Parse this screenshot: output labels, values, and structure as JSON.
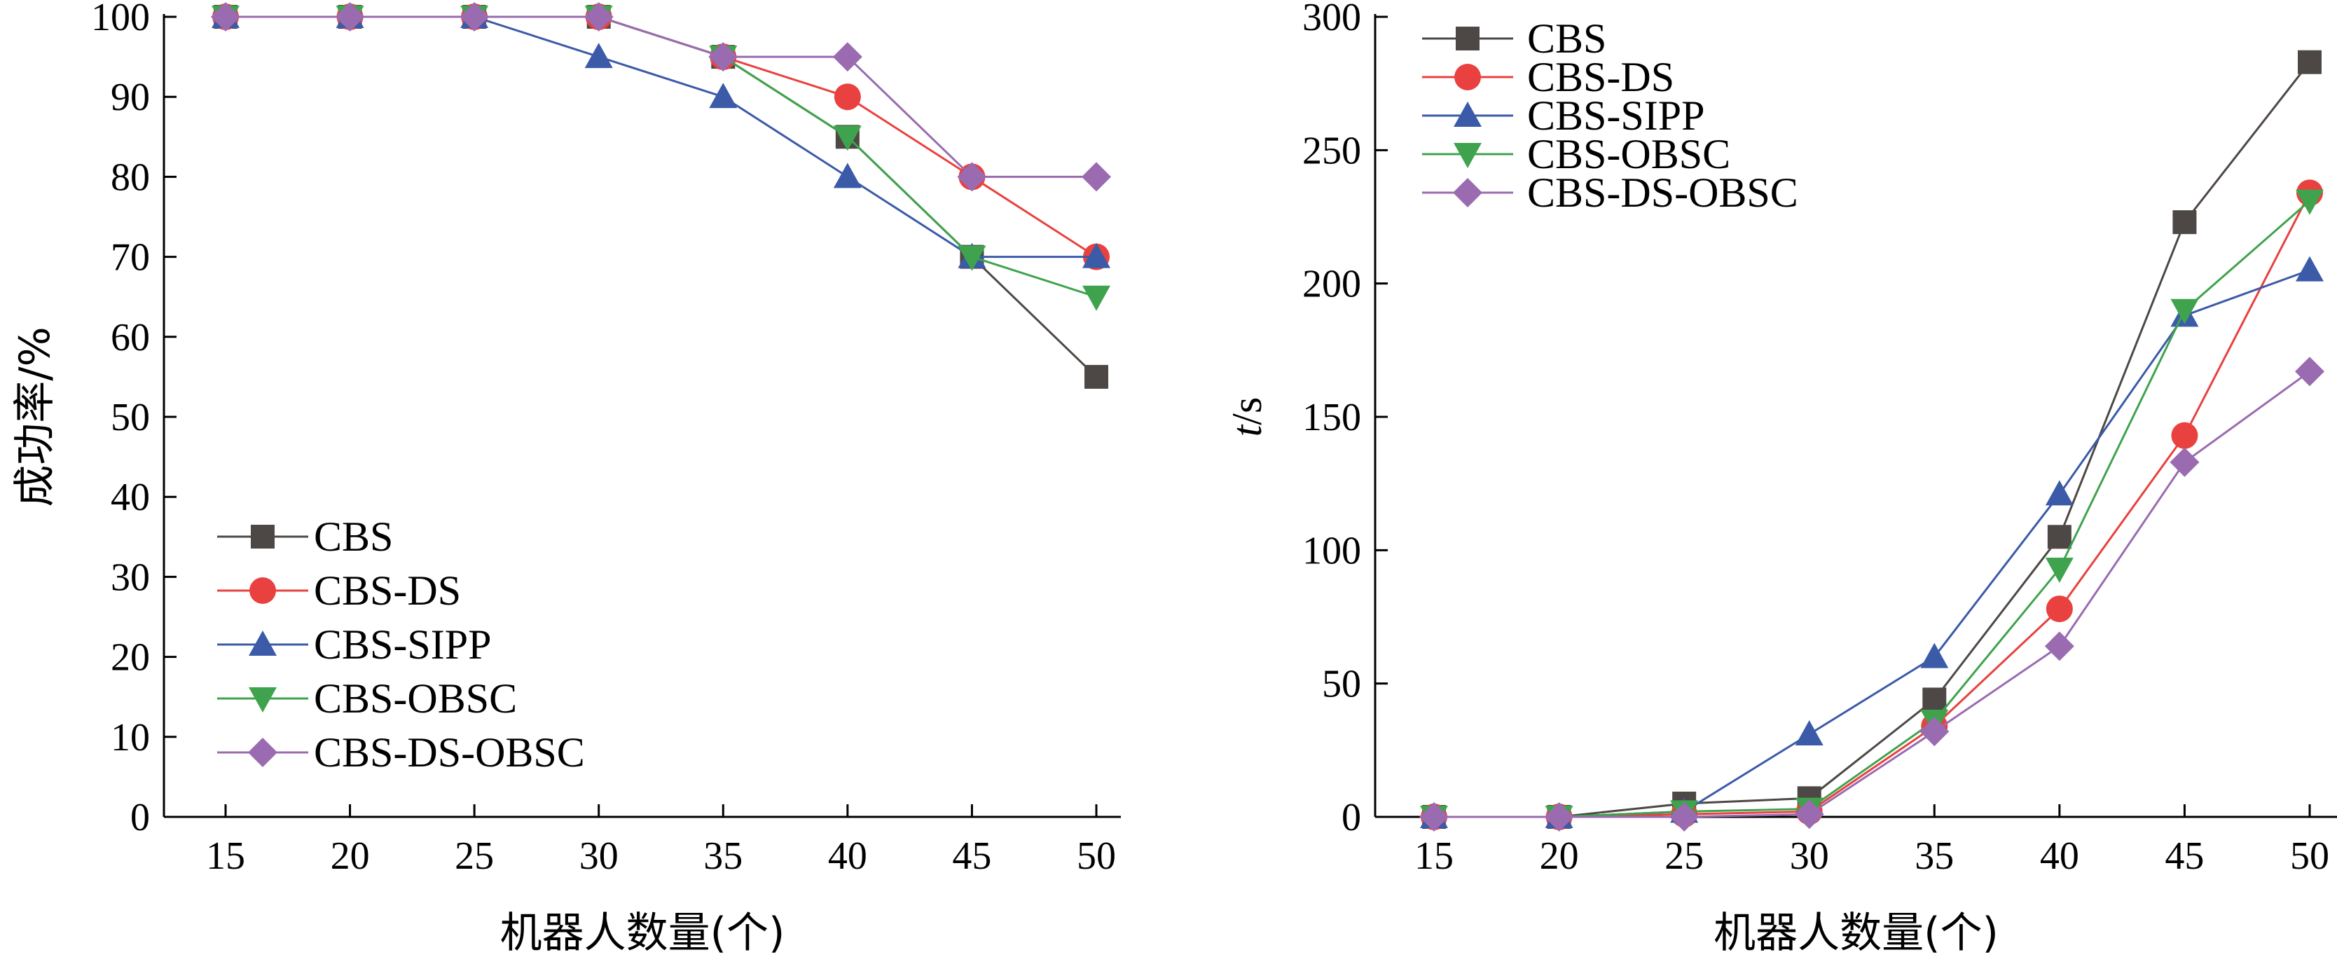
{
  "chart_data": [
    {
      "type": "line",
      "xlabel": "机器人数量(个)",
      "ylabel": "成功率/%",
      "x": [
        15,
        20,
        25,
        30,
        35,
        40,
        45,
        50
      ],
      "xticks": [
        "15",
        "20",
        "25",
        "30",
        "35",
        "40",
        "45",
        "50"
      ],
      "ylim": [
        0,
        100
      ],
      "yticks": [
        "0",
        "10",
        "20",
        "30",
        "40",
        "50",
        "60",
        "70",
        "80",
        "90",
        "100"
      ],
      "legend_position": "bottom-left",
      "grid": false,
      "series": [
        {
          "name": "CBS",
          "color": "#4d4845",
          "marker": "square",
          "values": [
            100,
            100,
            100,
            100,
            95,
            85,
            70,
            55
          ]
        },
        {
          "name": "CBS-DS",
          "color": "#e8413f",
          "marker": "circle",
          "values": [
            100,
            100,
            100,
            100,
            95,
            90,
            80,
            70
          ]
        },
        {
          "name": "CBS-SIPP",
          "color": "#3b5aa8",
          "marker": "triangle-up",
          "values": [
            100,
            100,
            100,
            95,
            90,
            80,
            70,
            70
          ]
        },
        {
          "name": "CBS-OBSC",
          "color": "#3fa34d",
          "marker": "triangle-down",
          "values": [
            100,
            100,
            100,
            100,
            95,
            85,
            70,
            65
          ]
        },
        {
          "name": "CBS-DS-OBSC",
          "color": "#9a6bb0",
          "marker": "diamond",
          "values": [
            100,
            100,
            100,
            100,
            95,
            95,
            80,
            80
          ]
        }
      ]
    },
    {
      "type": "line",
      "xlabel": "机器人数量(个)",
      "ylabel_italic": "t",
      "ylabel_rest": "/s",
      "x": [
        15,
        20,
        25,
        30,
        35,
        40,
        45,
        50
      ],
      "xticks": [
        "15",
        "20",
        "25",
        "30",
        "35",
        "40",
        "45",
        "50"
      ],
      "ylim": [
        0,
        300
      ],
      "yticks": [
        "0",
        "50",
        "100",
        "150",
        "200",
        "250",
        "300"
      ],
      "legend_position": "top-left",
      "grid": false,
      "series": [
        {
          "name": "CBS",
          "color": "#4d4845",
          "marker": "square",
          "values": [
            0,
            0,
            5,
            7,
            44,
            105,
            223,
            283
          ]
        },
        {
          "name": "CBS-DS",
          "color": "#e8413f",
          "marker": "circle",
          "values": [
            0,
            0,
            1,
            2,
            34,
            78,
            143,
            234
          ]
        },
        {
          "name": "CBS-SIPP",
          "color": "#3b5aa8",
          "marker": "triangle-up",
          "values": [
            0,
            0,
            2,
            31,
            60,
            121,
            188,
            205
          ]
        },
        {
          "name": "CBS-OBSC",
          "color": "#3fa34d",
          "marker": "triangle-down",
          "values": [
            0,
            0,
            2,
            3,
            36,
            93,
            190,
            231
          ]
        },
        {
          "name": "CBS-DS-OBSC",
          "color": "#9a6bb0",
          "marker": "diamond",
          "values": [
            0,
            0,
            0,
            1,
            32,
            64,
            133,
            167
          ]
        }
      ]
    }
  ]
}
